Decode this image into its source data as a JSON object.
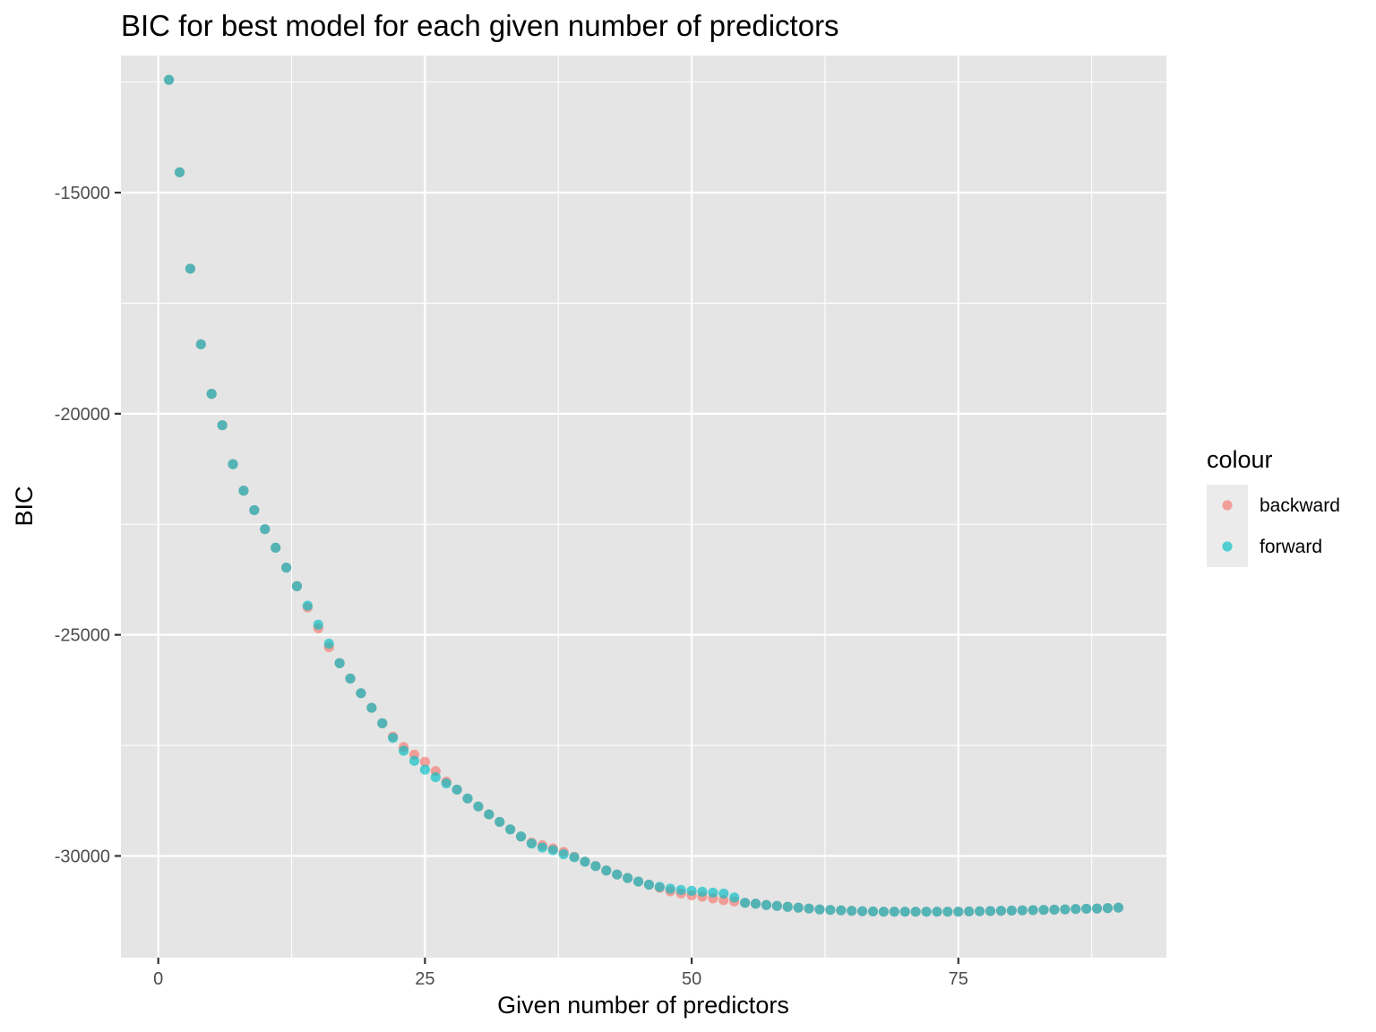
{
  "chart_data": {
    "type": "scatter",
    "title": "BIC for best model for each given number of predictors",
    "xlabel": "Given number of predictors",
    "ylabel": "BIC",
    "xlim": [
      -3.5,
      94.5
    ],
    "ylim": [
      -32300,
      -11900
    ],
    "x_ticks": [
      0,
      25,
      50,
      75
    ],
    "x_tick_labels": [
      "0",
      "25",
      "50",
      "75"
    ],
    "y_ticks": [
      -15000,
      -20000,
      -25000,
      -30000
    ],
    "y_tick_labels": [
      "-15000",
      "-20000",
      "-25000",
      "-30000"
    ],
    "grid": true,
    "point_alpha": 0.65,
    "legend": {
      "title": "colour",
      "position": "right",
      "entries": [
        {
          "label": "backward",
          "color": "#f8766d"
        },
        {
          "label": "forward",
          "color": "#00bfc4"
        }
      ]
    },
    "x": [
      1,
      2,
      3,
      4,
      5,
      6,
      7,
      8,
      9,
      10,
      11,
      12,
      13,
      14,
      15,
      16,
      17,
      18,
      19,
      20,
      21,
      22,
      23,
      24,
      25,
      26,
      27,
      28,
      29,
      30,
      31,
      32,
      33,
      34,
      35,
      36,
      37,
      38,
      39,
      40,
      41,
      42,
      43,
      44,
      45,
      46,
      47,
      48,
      49,
      50,
      51,
      52,
      53,
      54,
      55,
      56,
      57,
      58,
      59,
      60,
      61,
      62,
      63,
      64,
      65,
      66,
      67,
      68,
      69,
      70,
      71,
      72,
      73,
      74,
      75,
      76,
      77,
      78,
      79,
      80,
      81,
      82,
      83,
      84,
      85,
      86,
      87,
      88,
      89,
      90
    ],
    "series": [
      {
        "name": "backward",
        "color": "#f8766d",
        "values": [
          -12450,
          -14540,
          -16720,
          -18430,
          -19550,
          -20260,
          -21140,
          -21740,
          -22180,
          -22610,
          -23030,
          -23480,
          -23900,
          -24380,
          -24850,
          -25280,
          -25640,
          -25990,
          -26320,
          -26650,
          -27000,
          -27300,
          -27540,
          -27710,
          -27870,
          -28080,
          -28320,
          -28500,
          -28700,
          -28880,
          -29060,
          -29230,
          -29400,
          -29560,
          -29700,
          -29760,
          -29830,
          -29910,
          -30020,
          -30130,
          -30230,
          -30330,
          -30420,
          -30500,
          -30580,
          -30650,
          -30720,
          -30800,
          -30850,
          -30890,
          -30920,
          -30960,
          -31000,
          -31030,
          -31060,
          -31080,
          -31110,
          -31130,
          -31150,
          -31170,
          -31190,
          -31210,
          -31220,
          -31230,
          -31240,
          -31250,
          -31255,
          -31260,
          -31260,
          -31260,
          -31260,
          -31260,
          -31260,
          -31260,
          -31260,
          -31255,
          -31250,
          -31245,
          -31240,
          -31235,
          -31230,
          -31225,
          -31220,
          -31215,
          -31210,
          -31200,
          -31195,
          -31190,
          -31180,
          -31170
        ]
      },
      {
        "name": "forward",
        "color": "#00bfc4",
        "values": [
          -12450,
          -14540,
          -16720,
          -18430,
          -19550,
          -20260,
          -21140,
          -21740,
          -22180,
          -22610,
          -23030,
          -23480,
          -23900,
          -24340,
          -24770,
          -25200,
          -25640,
          -25990,
          -26320,
          -26650,
          -27000,
          -27330,
          -27620,
          -27850,
          -28050,
          -28220,
          -28360,
          -28500,
          -28700,
          -28880,
          -29060,
          -29230,
          -29400,
          -29560,
          -29720,
          -29810,
          -29870,
          -29960,
          -30030,
          -30130,
          -30230,
          -30330,
          -30420,
          -30500,
          -30580,
          -30650,
          -30700,
          -30740,
          -30770,
          -30790,
          -30810,
          -30830,
          -30850,
          -30940,
          -31060,
          -31080,
          -31110,
          -31130,
          -31150,
          -31170,
          -31190,
          -31210,
          -31220,
          -31230,
          -31240,
          -31250,
          -31255,
          -31260,
          -31260,
          -31260,
          -31260,
          -31260,
          -31260,
          -31260,
          -31260,
          -31255,
          -31250,
          -31245,
          -31240,
          -31235,
          -31230,
          -31225,
          -31220,
          -31215,
          -31210,
          -31200,
          -31195,
          -31190,
          -31180,
          -31170
        ]
      }
    ]
  }
}
